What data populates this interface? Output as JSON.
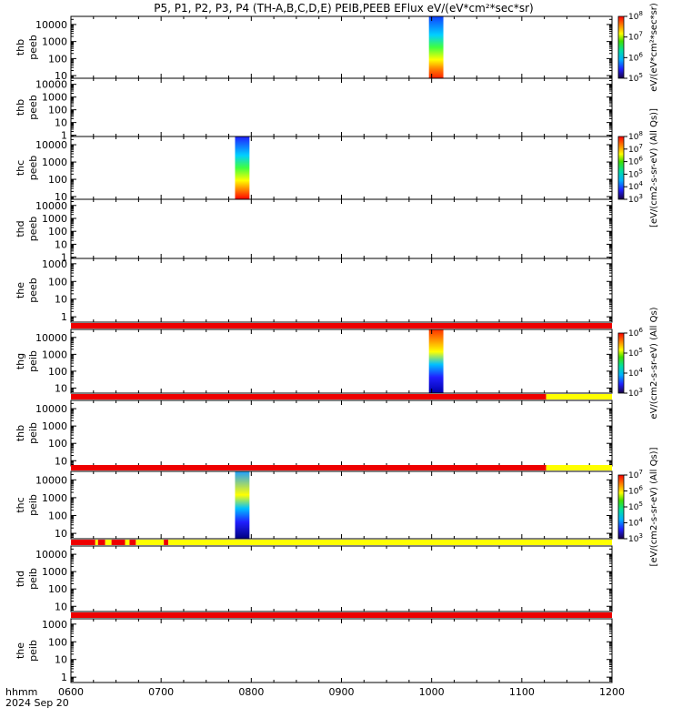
{
  "chart_data": {
    "type": "heatmap",
    "title": "P5, P1, P2, P3, P4 (TH-A,B,C,D,E) PEIB,PEEB EFlux eV/(eV*cm²*sec*sr)",
    "x_tick_labels": [
      "0600",
      "0700",
      "0800",
      "0900",
      "1000",
      "1100",
      "1200"
    ],
    "x_range_hours": [
      6,
      12
    ],
    "x_label_left": "hhmm",
    "date_label": "2024 Sep 20",
    "colorbars": [
      {
        "label": "eV/(eV*cm²*sec*sr)",
        "scale": "log",
        "range": [
          100000,
          100000000
        ]
      },
      {
        "label": "[eV/(cm2-s-sr-eV) (All Qs)]",
        "scale": "log",
        "range": [
          1000,
          100000000
        ]
      },
      {
        "label": "eV/(cm2-s-sr-eV) (All Qs)",
        "scale": "log",
        "range": [
          1000,
          1000000
        ]
      },
      {
        "label": "[eV/(cm2-s-sr-eV) (All Qs)]",
        "scale": "log",
        "range": [
          1000,
          10000000
        ]
      }
    ],
    "panels": [
      {
        "probe": "thb",
        "species": "peeb",
        "y_range": [
          7,
          30000
        ],
        "scale": "log",
        "y_ticks": [
          "10",
          "100",
          "1000",
          "10000"
        ],
        "data_blocks": [
          {
            "t_start": 9.97,
            "t_end": 10.13,
            "color_top": "#1040ff",
            "color_bottom": "#ff2000"
          }
        ],
        "status": []
      },
      {
        "probe": "thb",
        "species": "peeb",
        "y_range": [
          0.8,
          30000
        ],
        "scale": "log",
        "y_ticks": [
          "1",
          "10",
          "100",
          "1000",
          "10000"
        ],
        "data_blocks": [],
        "status": []
      },
      {
        "probe": "thc",
        "species": "peeb",
        "y_range": [
          7,
          30000
        ],
        "scale": "log",
        "y_ticks": [
          "10",
          "100",
          "1000",
          "10000"
        ],
        "data_blocks": [
          {
            "t_start": 7.82,
            "t_end": 7.98,
            "color_top": "#2020ff",
            "color_bottom": "#ff0000"
          }
        ],
        "status": []
      },
      {
        "probe": "thd",
        "species": "peeb",
        "y_range": [
          0.8,
          30000
        ],
        "scale": "log",
        "y_ticks": [
          "1",
          "10",
          "100",
          "1000",
          "10000"
        ],
        "data_blocks": [],
        "status": []
      },
      {
        "probe": "the",
        "species": "peeb",
        "y_range": [
          0.5,
          2000
        ],
        "scale": "log",
        "y_ticks": [
          "1",
          "10",
          "100",
          "1000"
        ],
        "data_blocks": [],
        "status": [
          {
            "t_start": 6,
            "t_end": 12,
            "color": "#ee0000"
          }
        ]
      },
      {
        "probe": "thg",
        "species": "peib",
        "y_range": [
          5,
          30000
        ],
        "scale": "log",
        "y_ticks": [
          "10",
          "100",
          "1000",
          "10000"
        ],
        "data_blocks": [
          {
            "t_start": 9.97,
            "t_end": 10.13,
            "color_top": "#ff3000",
            "color_bottom": "#0000aa"
          }
        ],
        "status": [
          {
            "t_start": 6,
            "t_end": 11.27,
            "color": "#ee0000"
          },
          {
            "t_start": 11.27,
            "t_end": 12,
            "color": "#ffff00"
          }
        ]
      },
      {
        "probe": "thb",
        "species": "peib",
        "y_range": [
          5,
          30000
        ],
        "scale": "log",
        "y_ticks": [
          "10",
          "100",
          "1000",
          "10000"
        ],
        "data_blocks": [],
        "status": [
          {
            "t_start": 6,
            "t_end": 11.27,
            "color": "#ee0000"
          },
          {
            "t_start": 11.27,
            "t_end": 12,
            "color": "#ffff00"
          }
        ]
      },
      {
        "probe": "thc",
        "species": "peib",
        "y_range": [
          5,
          30000
        ],
        "scale": "log",
        "y_ticks": [
          "10",
          "100",
          "1000",
          "10000"
        ],
        "data_blocks": [
          {
            "t_start": 7.82,
            "t_end": 7.98,
            "color_top": "#20a0ff",
            "color_bottom": "#000080"
          }
        ],
        "status": [
          {
            "t_start": 6,
            "t_end": 6.27,
            "color": "#ee0000"
          },
          {
            "t_start": 6.27,
            "t_end": 6.3,
            "color": "#ffff00"
          },
          {
            "t_start": 6.3,
            "t_end": 6.38,
            "color": "#ee0000"
          },
          {
            "t_start": 6.38,
            "t_end": 6.45,
            "color": "#ffff00"
          },
          {
            "t_start": 6.45,
            "t_end": 6.6,
            "color": "#ee0000"
          },
          {
            "t_start": 6.6,
            "t_end": 6.65,
            "color": "#ffff00"
          },
          {
            "t_start": 6.65,
            "t_end": 6.72,
            "color": "#ee0000"
          },
          {
            "t_start": 6.72,
            "t_end": 7.03,
            "color": "#ffff00"
          },
          {
            "t_start": 7.03,
            "t_end": 7.08,
            "color": "#ee0000"
          },
          {
            "t_start": 7.08,
            "t_end": 12,
            "color": "#ffff00"
          }
        ]
      },
      {
        "probe": "thd",
        "species": "peib",
        "y_range": [
          5,
          30000
        ],
        "scale": "log",
        "y_ticks": [
          "10",
          "100",
          "1000",
          "10000"
        ],
        "data_blocks": [],
        "status": [
          {
            "t_start": 6,
            "t_end": 12,
            "color": "#ee0000"
          }
        ]
      },
      {
        "probe": "the",
        "species": "peib",
        "y_range": [
          0.5,
          2000
        ],
        "scale": "log",
        "y_ticks": [
          "1",
          "10",
          "100",
          "1000"
        ],
        "data_blocks": [],
        "status": []
      }
    ]
  }
}
